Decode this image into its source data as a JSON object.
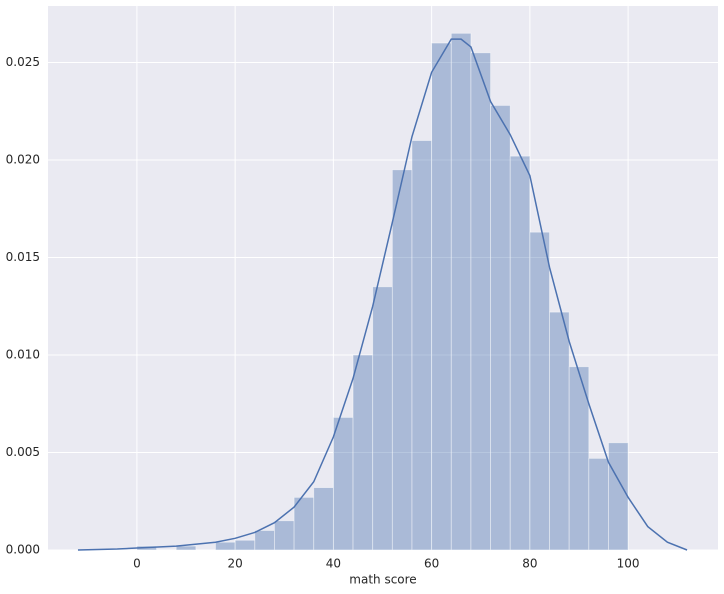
{
  "chart_data": {
    "type": "histogram",
    "xlabel": "math score",
    "bins": [
      0,
      4,
      8,
      12,
      16,
      20,
      24,
      28,
      32,
      36,
      40,
      44,
      48,
      52,
      56,
      60,
      64,
      68,
      72,
      76,
      80,
      84,
      88,
      92,
      96,
      100
    ],
    "values": [
      0.0002,
      0,
      0.0002,
      0,
      0.0004,
      0.0005,
      0.001,
      0.0015,
      0.0027,
      0.0032,
      0.0068,
      0.01,
      0.0135,
      0.0195,
      0.021,
      0.026,
      0.0265,
      0.0255,
      0.0228,
      0.0202,
      0.0163,
      0.0122,
      0.0094,
      0.0047,
      0.0055
    ],
    "color": "#4c72b0",
    "kde": {
      "color": "#4c72b0",
      "x": [
        -12,
        -4,
        0,
        8,
        16,
        20,
        24,
        28,
        32,
        36,
        40,
        44,
        48,
        52,
        56,
        60,
        64,
        66,
        68,
        72,
        76,
        80,
        84,
        88,
        92,
        96,
        100,
        104,
        108,
        112
      ],
      "values": [
        0,
        5e-05,
        0.0001,
        0.0002,
        0.0004,
        0.0006,
        0.0009,
        0.0014,
        0.0022,
        0.0035,
        0.0058,
        0.0088,
        0.0125,
        0.0168,
        0.0212,
        0.0245,
        0.0262,
        0.0262,
        0.0258,
        0.023,
        0.0213,
        0.0192,
        0.0145,
        0.0107,
        0.0075,
        0.0045,
        0.0027,
        0.0012,
        0.0004,
        0
      ]
    },
    "xlim": [
      -18.1,
      118.3
    ],
    "ylim": [
      0,
      0.0279
    ],
    "xticks": [
      0,
      20,
      40,
      60,
      80,
      100
    ],
    "yticks": [
      {
        "value": 0,
        "label": "0.000"
      },
      {
        "value": 0.005,
        "label": "0.005"
      },
      {
        "value": 0.01,
        "label": "0.010"
      },
      {
        "value": 0.015,
        "label": "0.015"
      },
      {
        "value": 0.02,
        "label": "0.020"
      },
      {
        "value": 0.025,
        "label": "0.025"
      }
    ],
    "grid": true
  }
}
